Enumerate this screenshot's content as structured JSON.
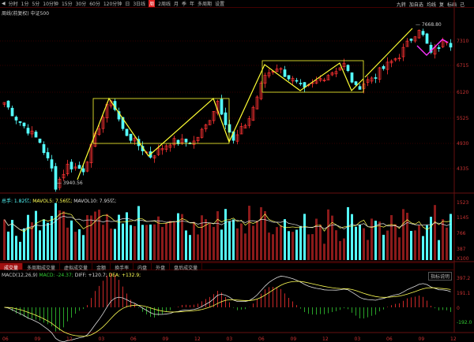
{
  "toolbar": {
    "items": [
      "分时",
      "1分",
      "5分",
      "10分钟",
      "15分",
      "30分",
      "60分",
      "120分钟",
      "日",
      "3日线",
      "周",
      "2周线",
      "月",
      "季",
      "年",
      "多周期",
      "设置"
    ],
    "active_index": 10,
    "right": [
      "九转",
      "加自选",
      "均线",
      "复",
      "标画",
      "己"
    ]
  },
  "subtitle": "周线(前复权)  中证500",
  "price_axis": [
    "7310",
    "6715",
    "6120",
    "5525",
    "4930",
    "4335"
  ],
  "price_annotations": {
    "low": "3940.56",
    "high": "7668.80"
  },
  "volume": {
    "label_total": "总手: 1.82亿;",
    "label_ma5": "MAVOL5: 7.56亿;",
    "label_ma10": "MAVOL10: 7.95亿;",
    "axis": [
      "1523",
      "1145",
      "766",
      "387",
      "X100"
    ]
  },
  "tabs": [
    "成交量",
    "多周期成交量",
    "虚拟成交量",
    "金额",
    "换手率",
    "内盘",
    "外盘",
    "盘后成交量"
  ],
  "macd": {
    "name": "MACD(12,26,9)",
    "macd": "MACD: -24.37;",
    "diff": "DIFF: +120.7;",
    "dea": "DEA: +132.9;",
    "help": "指标说明",
    "axis": [
      "397.2",
      "191.1",
      "0",
      "-192.0"
    ]
  },
  "x_axis": [
    "06",
    "09",
    "12",
    "03",
    "06",
    "09",
    "12",
    "03",
    "06",
    "09",
    "12",
    "03",
    "06",
    "09",
    "12"
  ],
  "colors": {
    "up": "#ff3232",
    "down": "#54ffff",
    "annotation": "#ffff33",
    "annotation2": "#ff33ff",
    "axis": "#cc3333"
  },
  "chart_data": {
    "type": "candlestick",
    "price_path": [
      [
        0,
        5883
      ],
      [
        3,
        5517
      ],
      [
        6,
        5242
      ],
      [
        9,
        4968
      ],
      [
        12,
        4327
      ],
      [
        13,
        3940
      ],
      [
        16,
        4418
      ],
      [
        20,
        4327
      ],
      [
        24,
        5334
      ],
      [
        27,
        5974
      ],
      [
        30,
        5242
      ],
      [
        33,
        4968
      ],
      [
        37,
        4638
      ],
      [
        42,
        4968
      ],
      [
        48,
        4968
      ],
      [
        51,
        5334
      ],
      [
        54,
        5919
      ],
      [
        58,
        4968
      ],
      [
        62,
        5517
      ],
      [
        66,
        6523
      ],
      [
        69,
        6706
      ],
      [
        76,
        6157
      ],
      [
        80,
        6432
      ],
      [
        86,
        6761
      ],
      [
        89,
        6212
      ],
      [
        94,
        6523
      ],
      [
        100,
        6980
      ],
      [
        105,
        7621
      ],
      [
        108,
        7017
      ],
      [
        112,
        7347
      ],
      [
        113,
        7250
      ]
    ]
  }
}
